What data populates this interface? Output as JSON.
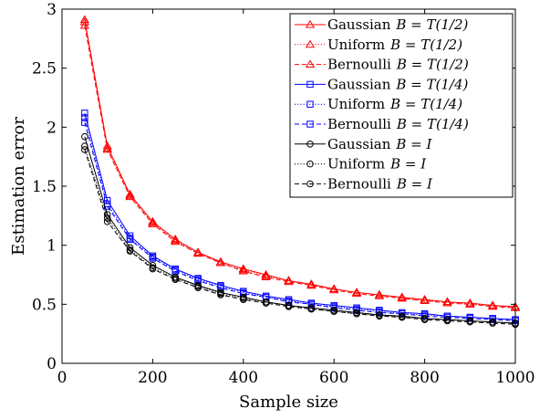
{
  "chart_data": {
    "type": "line",
    "xlabel": "Sample size",
    "ylabel": "Estimation error",
    "xlim": [
      0,
      1000
    ],
    "ylim": [
      0,
      3
    ],
    "x_ticks": [
      0,
      200,
      400,
      600,
      800,
      1000
    ],
    "y_ticks": [
      0,
      0.5,
      1,
      1.5,
      2,
      2.5,
      3
    ],
    "x_tick_labels": [
      "0",
      "200",
      "400",
      "600",
      "800",
      "1000"
    ],
    "y_tick_labels": [
      "0",
      "0.5",
      "1",
      "1.5",
      "2",
      "2.5",
      "3"
    ],
    "grid": false,
    "legend_position": "top-right",
    "x": [
      50,
      100,
      150,
      200,
      250,
      300,
      350,
      400,
      450,
      500,
      550,
      600,
      650,
      700,
      750,
      800,
      850,
      900,
      950,
      1000
    ],
    "series": [
      {
        "name": "Gaussian B = T(1/2)",
        "legend_prefix": "Gaussian",
        "legend_suffix": "B = T(1/2)",
        "color": "#ff0000",
        "marker": "triangle",
        "dash": "solid",
        "values": [
          2.91,
          1.84,
          1.43,
          1.2,
          1.05,
          0.94,
          0.86,
          0.8,
          0.75,
          0.7,
          0.67,
          0.63,
          0.6,
          0.58,
          0.56,
          0.54,
          0.52,
          0.51,
          0.49,
          0.48
        ]
      },
      {
        "name": "Uniform B = T(1/2)",
        "legend_prefix": "Uniform",
        "legend_suffix": "B = T(1/2)",
        "color": "#ff0000",
        "marker": "triangle",
        "dash": "dotted",
        "values": [
          2.89,
          1.82,
          1.42,
          1.19,
          1.04,
          0.93,
          0.85,
          0.79,
          0.74,
          0.7,
          0.66,
          0.63,
          0.6,
          0.58,
          0.55,
          0.53,
          0.52,
          0.5,
          0.49,
          0.47
        ]
      },
      {
        "name": "Bernoulli B = T(1/2)",
        "legend_prefix": "Bernoulli",
        "legend_suffix": "B = T(1/2)",
        "color": "#ff0000",
        "marker": "triangle",
        "dash": "dashed",
        "values": [
          2.86,
          1.81,
          1.41,
          1.18,
          1.03,
          0.93,
          0.85,
          0.78,
          0.73,
          0.69,
          0.66,
          0.62,
          0.59,
          0.57,
          0.55,
          0.53,
          0.51,
          0.5,
          0.48,
          0.47
        ]
      },
      {
        "name": "Gaussian B = T(1/4)",
        "legend_prefix": "Gaussian",
        "legend_suffix": "B = T(1/4)",
        "color": "#0000ff",
        "marker": "square",
        "dash": "solid",
        "values": [
          2.12,
          1.38,
          1.08,
          0.91,
          0.8,
          0.72,
          0.66,
          0.61,
          0.57,
          0.54,
          0.51,
          0.49,
          0.47,
          0.45,
          0.43,
          0.42,
          0.4,
          0.39,
          0.38,
          0.37
        ]
      },
      {
        "name": "Uniform B = T(1/4)",
        "legend_prefix": "Uniform",
        "legend_suffix": "B = T(1/4)",
        "color": "#0000ff",
        "marker": "square",
        "dash": "dotted",
        "values": [
          2.08,
          1.35,
          1.06,
          0.9,
          0.79,
          0.71,
          0.65,
          0.6,
          0.56,
          0.53,
          0.5,
          0.48,
          0.46,
          0.44,
          0.42,
          0.41,
          0.4,
          0.39,
          0.38,
          0.37
        ]
      },
      {
        "name": "Bernoulli B = T(1/4)",
        "legend_prefix": "Bernoulli",
        "legend_suffix": "B = T(1/4)",
        "color": "#0000ff",
        "marker": "square",
        "dash": "dashed",
        "values": [
          2.04,
          1.33,
          1.05,
          0.89,
          0.78,
          0.7,
          0.64,
          0.59,
          0.56,
          0.52,
          0.5,
          0.47,
          0.45,
          0.43,
          0.42,
          0.4,
          0.39,
          0.38,
          0.37,
          0.36
        ]
      },
      {
        "name": "Gaussian B = I",
        "legend_prefix": "Gaussian",
        "legend_suffix": "B = I",
        "color": "#000000",
        "marker": "circle",
        "dash": "solid",
        "values": [
          1.92,
          1.26,
          0.98,
          0.83,
          0.73,
          0.66,
          0.6,
          0.56,
          0.52,
          0.49,
          0.47,
          0.45,
          0.43,
          0.41,
          0.4,
          0.38,
          0.37,
          0.36,
          0.35,
          0.34
        ]
      },
      {
        "name": "Uniform B = I",
        "legend_prefix": "Uniform",
        "legend_suffix": "B = I",
        "color": "#000000",
        "marker": "circle",
        "dash": "dotted",
        "values": [
          1.84,
          1.23,
          0.96,
          0.81,
          0.72,
          0.65,
          0.59,
          0.55,
          0.52,
          0.49,
          0.46,
          0.44,
          0.42,
          0.41,
          0.39,
          0.38,
          0.37,
          0.36,
          0.35,
          0.34
        ]
      },
      {
        "name": "Bernoulli B = I",
        "legend_prefix": "Bernoulli",
        "legend_suffix": "B = I",
        "color": "#000000",
        "marker": "circle",
        "dash": "dashed",
        "values": [
          1.81,
          1.2,
          0.95,
          0.8,
          0.71,
          0.64,
          0.58,
          0.54,
          0.51,
          0.48,
          0.46,
          0.44,
          0.42,
          0.4,
          0.39,
          0.37,
          0.36,
          0.35,
          0.34,
          0.33
        ]
      }
    ]
  }
}
